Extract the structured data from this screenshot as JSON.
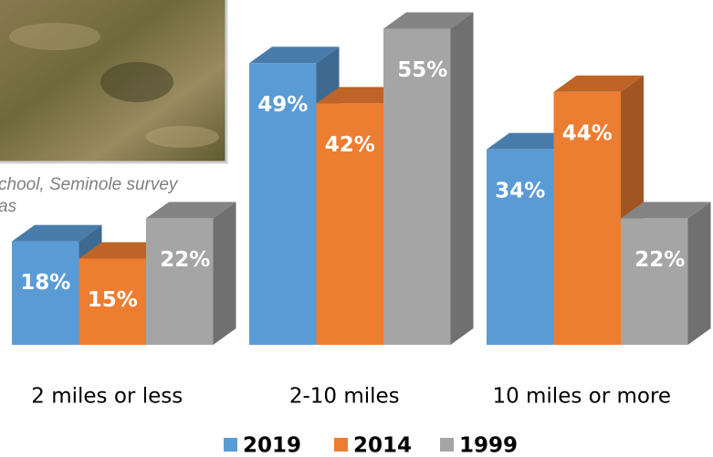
{
  "chart_data": {
    "type": "bar3d",
    "annotations": [
      "chool, Seminole survey",
      "as"
    ],
    "categories": [
      "2 miles or less",
      "2-10 miles",
      "10 miles or more"
    ],
    "series": [
      {
        "name": "2019",
        "color": "#5b9bd5",
        "values": [
          18,
          49,
          34
        ],
        "value_labels": [
          "18%",
          "49%",
          "34%"
        ]
      },
      {
        "name": "2014",
        "color": "#ed7d31",
        "values": [
          15,
          42,
          44
        ],
        "value_labels": [
          "15%",
          "42%",
          "44%"
        ]
      },
      {
        "name": "1999",
        "color": "#a5a5a5",
        "values": [
          22,
          55,
          22
        ],
        "value_labels": [
          "22%",
          "55%",
          "22%"
        ]
      }
    ]
  }
}
